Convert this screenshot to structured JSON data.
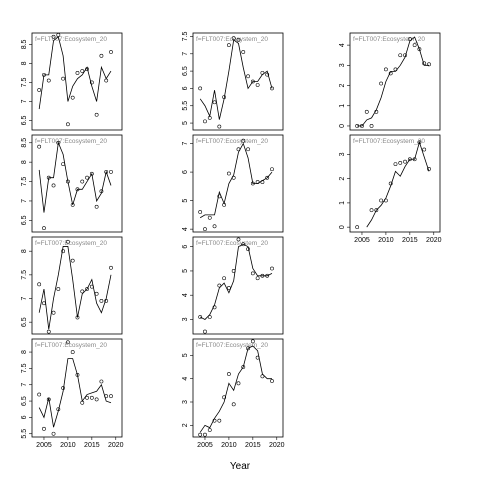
{
  "chart_data": {
    "type": "facet-scatter-line",
    "x_label": "Year",
    "x": [
      2004,
      2005,
      2006,
      2007,
      2008,
      2009,
      2010,
      2011,
      2012,
      2013,
      2014,
      2015,
      2016,
      2017,
      2018,
      2019
    ],
    "xlim": [
      2002.5,
      2021.3
    ],
    "xticks": [
      2005,
      2010,
      2015,
      2020
    ],
    "panels": [
      {
        "strip": "f=FLT007:Ecosystem_20",
        "ylim": [
          6.25,
          8.8
        ],
        "yticks": [
          6.5,
          7.0,
          7.5,
          8.0,
          8.5
        ],
        "values": [
          7.3,
          7.7,
          7.55,
          8.7,
          8.75,
          7.6,
          6.4,
          7.1,
          7.75,
          7.8,
          7.85,
          7.5,
          6.65,
          8.2,
          7.55,
          8.3
        ],
        "fitted": [
          6.8,
          7.7,
          7.7,
          8.6,
          8.7,
          8.2,
          7.0,
          7.4,
          7.6,
          7.7,
          7.9,
          7.4,
          7.0,
          7.9,
          7.6,
          7.8
        ]
      },
      {
        "strip": "f=FLT007:Ecosystem_20",
        "ylim": [
          4.8,
          7.6
        ],
        "yticks": [
          5.0,
          5.5,
          6.0,
          6.5,
          7.0,
          7.5
        ],
        "values": [
          6.0,
          5.05,
          5.15,
          5.6,
          4.9,
          5.75,
          7.25,
          7.45,
          7.4,
          7.05,
          6.35,
          6.2,
          6.1,
          6.45,
          6.4,
          6.0
        ],
        "fitted": [
          5.7,
          5.5,
          5.2,
          5.95,
          5.1,
          5.7,
          6.5,
          7.4,
          7.3,
          6.6,
          6.0,
          6.2,
          6.2,
          6.4,
          6.5,
          6.0
        ]
      },
      {
        "strip": "f=FLT007:Ecosystem_20",
        "ylim": [
          -0.2,
          4.6
        ],
        "yticks": [
          0,
          1,
          2,
          3,
          4
        ],
        "values": [
          0,
          0,
          0.7,
          0,
          0.7,
          2.1,
          2.8,
          2.6,
          2.8,
          3.5,
          3.5,
          4.3,
          4.0,
          3.8,
          3.1,
          3.05
        ],
        "fitted": [
          0,
          0,
          0.3,
          0.4,
          0.8,
          1.4,
          2.2,
          2.7,
          2.7,
          3.0,
          3.4,
          4.2,
          4.4,
          3.8,
          3.0,
          3.0
        ]
      },
      {
        "strip": "f=FLT007:Ecosystem_20",
        "ylim": [
          6.2,
          8.7
        ],
        "yticks": [
          6.5,
          7.0,
          7.5,
          8.0,
          8.5
        ],
        "values": [
          8.4,
          6.3,
          7.6,
          7.4,
          8.5,
          7.95,
          7.5,
          6.9,
          7.3,
          7.5,
          7.6,
          7.7,
          6.85,
          7.25,
          7.75,
          7.75
        ],
        "fitted": [
          7.8,
          6.7,
          7.6,
          7.6,
          8.5,
          8.2,
          7.5,
          6.9,
          7.3,
          7.3,
          7.5,
          7.7,
          7.0,
          7.2,
          7.75,
          7.4
        ]
      },
      {
        "strip": "f=FLT007:Ecosystem_20",
        "ylim": [
          3.9,
          7.3
        ],
        "yticks": [
          4.0,
          5.0,
          6.0,
          7.0
        ],
        "values": [
          4.6,
          4.0,
          4.4,
          4.1,
          5.15,
          4.85,
          5.95,
          5.8,
          6.8,
          7.1,
          6.8,
          5.6,
          5.65,
          5.65,
          5.8,
          6.1
        ],
        "fitted": [
          4.4,
          4.5,
          4.5,
          4.5,
          5.3,
          4.9,
          5.6,
          5.9,
          6.7,
          7.0,
          6.5,
          5.6,
          5.6,
          5.7,
          5.8,
          6.0
        ]
      },
      {
        "strip": "f=FLT007:Ecosystem_20",
        "ylim": [
          -0.2,
          3.8
        ],
        "yticks": [
          0,
          1,
          2,
          3
        ],
        "values": [
          0,
          null,
          null,
          0.7,
          0.7,
          1.1,
          1.1,
          1.8,
          2.6,
          2.65,
          2.7,
          2.8,
          2.8,
          3.5,
          3.2,
          2.4
        ],
        "fitted": [
          null,
          null,
          0,
          0.3,
          0.7,
          0.9,
          1.2,
          1.7,
          2.3,
          2.1,
          2.5,
          2.8,
          2.8,
          3.5,
          2.9,
          2.3
        ]
      },
      {
        "strip": "f=FLT007:Ecosystem_20",
        "ylim": [
          6.25,
          8.3
        ],
        "yticks": [
          6.5,
          7.0,
          7.5,
          8.0
        ],
        "values": [
          7.3,
          6.9,
          6.3,
          6.7,
          7.2,
          8.0,
          8.2,
          7.8,
          6.6,
          7.15,
          7.2,
          7.25,
          7.1,
          6.95,
          6.95,
          7.65
        ],
        "fitted": [
          6.7,
          7.2,
          6.35,
          7.0,
          7.5,
          8.1,
          8.1,
          7.4,
          6.6,
          7.1,
          7.2,
          7.4,
          6.9,
          6.7,
          7.0,
          7.5
        ]
      },
      {
        "strip": "f=FLT007:Ecosystem_20",
        "ylim": [
          2.4,
          6.4
        ],
        "yticks": [
          3,
          4,
          5,
          6
        ],
        "values": [
          3.1,
          2.5,
          3.1,
          3.5,
          4.4,
          4.7,
          4.3,
          5.0,
          6.3,
          6.1,
          5.9,
          4.9,
          4.7,
          4.8,
          4.8,
          5.1
        ],
        "fitted": [
          3.1,
          3.0,
          3.2,
          3.6,
          4.3,
          4.5,
          4.1,
          4.6,
          6.0,
          6.1,
          6.0,
          5.1,
          4.8,
          4.8,
          4.8,
          4.9
        ]
      },
      {
        "strip": "f=FLT007:Ecosystem_20",
        "ylim": [
          5.4,
          8.4
        ],
        "yticks": [
          5.5,
          6.0,
          6.5,
          7.0,
          7.5,
          8.0
        ],
        "values": [
          6.7,
          5.65,
          6.55,
          5.5,
          6.25,
          6.9,
          8.3,
          8.0,
          7.3,
          6.45,
          6.6,
          6.6,
          6.55,
          7.1,
          6.65,
          6.65
        ],
        "fitted": [
          6.3,
          6.0,
          6.6,
          5.7,
          6.2,
          6.8,
          7.8,
          7.8,
          7.3,
          6.5,
          6.7,
          6.75,
          6.8,
          7.0,
          6.5,
          6.45
        ]
      },
      {
        "strip": "f=FLT007:Ecosystem_20",
        "ylim": [
          1.5,
          5.7
        ],
        "yticks": [
          2,
          3,
          4,
          5
        ],
        "values": [
          1.6,
          1.6,
          1.8,
          2.2,
          2.2,
          3.2,
          4.2,
          2.9,
          3.8,
          4.5,
          5.3,
          5.6,
          4.9,
          4.1,
          null,
          3.9
        ],
        "fitted": [
          1.7,
          2.0,
          1.9,
          2.3,
          2.6,
          3.0,
          3.8,
          3.5,
          4.2,
          4.5,
          5.3,
          5.4,
          5.2,
          4.2,
          4.0,
          4.0
        ]
      }
    ]
  }
}
